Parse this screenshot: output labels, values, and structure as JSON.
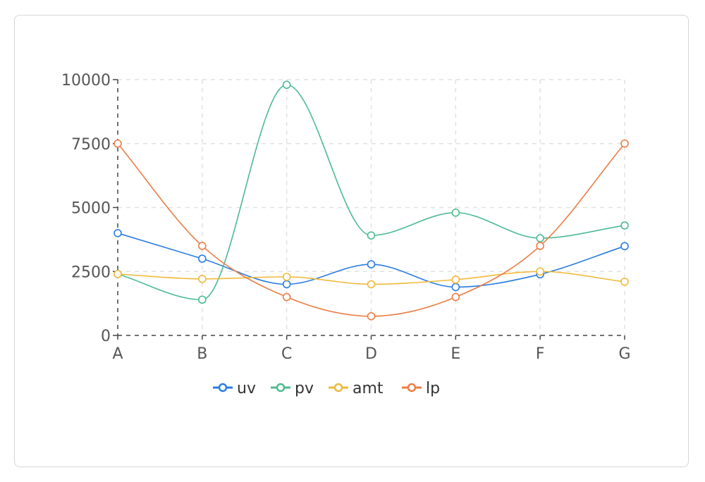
{
  "chart_data": {
    "type": "line",
    "categories": [
      "A",
      "B",
      "C",
      "D",
      "E",
      "F",
      "G"
    ],
    "series": [
      {
        "name": "uv",
        "color": "#2a7de1",
        "values": [
          4000,
          3000,
          2000,
          2780,
          1890,
          2390,
          3490
        ]
      },
      {
        "name": "pv",
        "color": "#4dbb92",
        "values": [
          2400,
          1398,
          9800,
          3908,
          4800,
          3800,
          4300
        ]
      },
      {
        "name": "amt",
        "color": "#f0b93a",
        "values": [
          2400,
          2210,
          2290,
          2000,
          2181,
          2500,
          2100
        ]
      },
      {
        "name": "lp",
        "color": "#ec7d45",
        "values": [
          7500,
          3500,
          1500,
          750,
          1500,
          3500,
          7500
        ]
      }
    ],
    "yticks": [
      0,
      2500,
      5000,
      7500,
      10000
    ],
    "ylim": [
      0,
      10000
    ],
    "grid": true,
    "curve": "smooth",
    "legend": "bottom"
  }
}
